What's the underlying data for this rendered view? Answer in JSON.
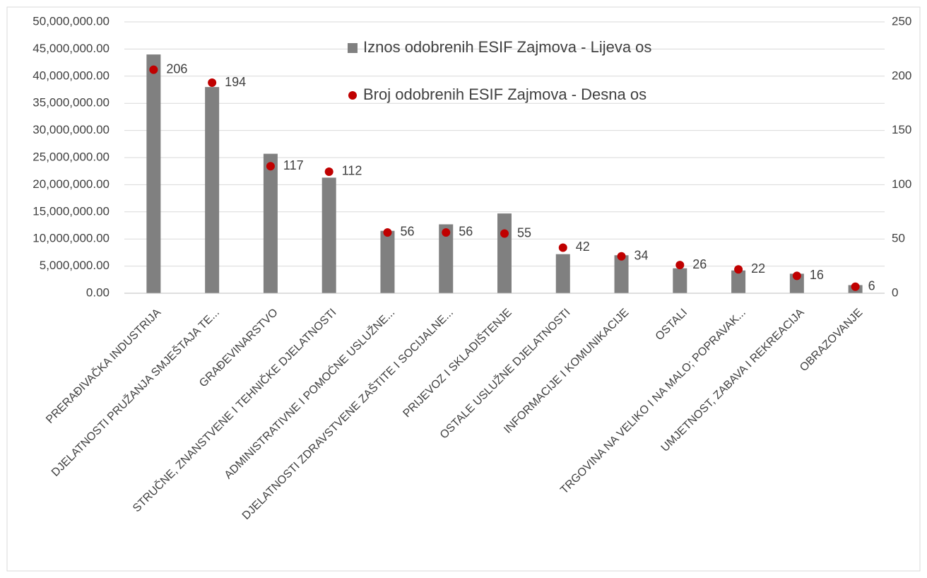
{
  "chart_data": {
    "type": "bar_scatter",
    "categories": [
      "PRERAĐIVAČKA INDUSTRIJA",
      "DJELATNOSTI PRUŽANJA SMJEŠTAJA TE...",
      "GRAĐEVINARSTVO",
      "STRUČNE, ZNANSTVENE I TEHNIČKE DJELATNOSTI",
      "ADMINISTRATIVNE I POMOĆNE USLUŽNE...",
      "DJELATNOSTI ZDRAVSTVENE ZAŠTITE I SOCIJALNE...",
      "PRIJEVOZ I SKLADIŠTENJE",
      "OSTALE USLUŽNE DJELATNOSTI",
      "INFORMACIJE I KOMUNIKACIJE",
      "OSTALI",
      "TRGOVINA NA VELIKO I NA MALO; POPRAVAK...",
      "UMJETNOST, ZABAVA I REKREACIJA",
      "OBRAZOVANJE"
    ],
    "series": [
      {
        "name": "Iznos odobrenih ESIF Zajmova - Lijeva os",
        "type": "bar",
        "color": "#808080",
        "values": [
          44000000,
          38000000,
          25700000,
          21300000,
          11500000,
          12700000,
          14700000,
          7200000,
          7000000,
          4600000,
          4200000,
          3600000,
          1500000
        ]
      },
      {
        "name": "Broj odobrenih ESIF Zajmova - Desna os",
        "type": "scatter",
        "axis": "y2",
        "color": "#c00000",
        "values": [
          206,
          194,
          117,
          112,
          56,
          56,
          55,
          42,
          34,
          26,
          22,
          16,
          6
        ]
      }
    ],
    "ylim": [
      0,
      50000000
    ],
    "yticks": [
      {
        "value": 0,
        "label": "0.00"
      },
      {
        "value": 5000000,
        "label": "5,000,000.00"
      },
      {
        "value": 10000000,
        "label": "10,000,000.00"
      },
      {
        "value": 15000000,
        "label": "15,000,000.00"
      },
      {
        "value": 20000000,
        "label": "20,000,000.00"
      },
      {
        "value": 25000000,
        "label": "25,000,000.00"
      },
      {
        "value": 30000000,
        "label": "30,000,000.00"
      },
      {
        "value": 35000000,
        "label": "35,000,000.00"
      },
      {
        "value": 40000000,
        "label": "40,000,000.00"
      },
      {
        "value": 45000000,
        "label": "45,000,000.00"
      },
      {
        "value": 50000000,
        "label": "50,000,000.00"
      }
    ],
    "y2lim": [
      0,
      250
    ],
    "y2ticks": [
      0,
      50,
      100,
      150,
      200,
      250
    ],
    "grid": true
  }
}
